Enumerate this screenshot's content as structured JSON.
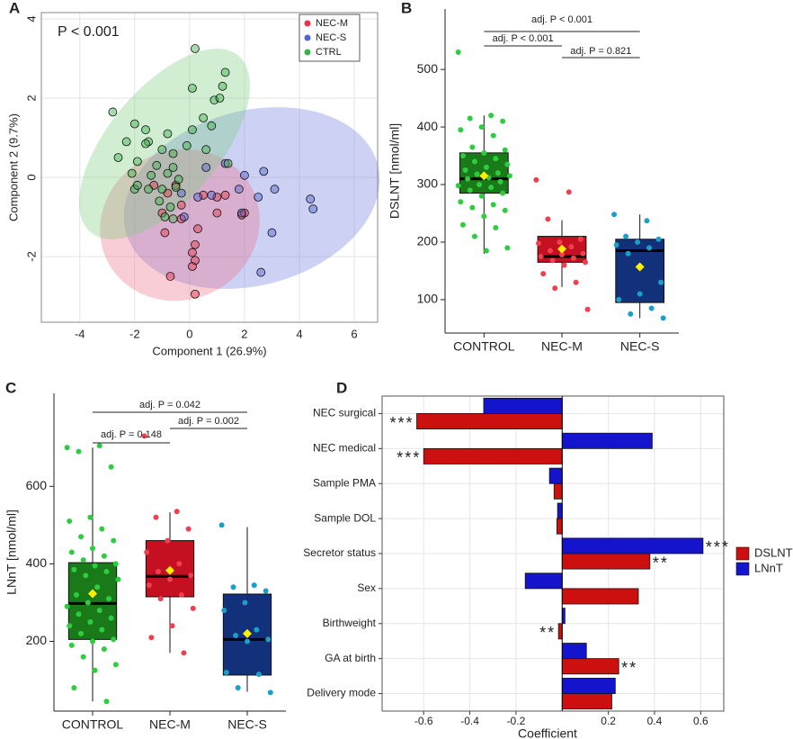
{
  "chart_data": [
    {
      "type": "scatter",
      "panel": "A",
      "annotation": "P < 0.001",
      "x_label": "Component 1 (26.9%)",
      "y_label": "Component 2 (9.7%)",
      "xlim": [
        -5.4,
        6.85
      ],
      "ylim": [
        -3.66,
        4.16
      ],
      "xticks": [
        -4,
        -2,
        0,
        2,
        4,
        6
      ],
      "yticks": [
        -2,
        0,
        2,
        4
      ],
      "grid": true,
      "legend": "top-right",
      "series": [
        {
          "name": "NEC-M",
          "color": "#e8334a",
          "x": [
            -0.5,
            -1.3,
            -0.8,
            -1.0,
            -0.3,
            -0.9,
            0.2,
            0.1,
            0.2,
            0.1,
            -0.7,
            0.2,
            0.5,
            1.0,
            1.3,
            1.0,
            1.9,
            2.0,
            0.3,
            -0.3
          ],
          "values": [
            -0.2,
            -0.2,
            -0.4,
            -0.9,
            -0.7,
            -1.4,
            -1.7,
            -1.9,
            -2.1,
            -2.25,
            -2.5,
            -2.95,
            -0.45,
            -0.5,
            -0.45,
            -0.9,
            -0.95,
            -0.9,
            -1.3,
            -1.05
          ]
        },
        {
          "name": "NEC-S",
          "color": "#5064d0",
          "x": [
            1.3,
            2.7,
            2.0,
            1.8,
            0.8,
            3.1,
            4.4,
            4.5,
            1.9,
            2.5,
            3.0,
            2.6,
            0.6,
            -0.3,
            0.3,
            -0.2
          ],
          "values": [
            0.35,
            0.15,
            0.05,
            -0.3,
            -0.45,
            -0.3,
            -0.55,
            -0.8,
            -0.9,
            -0.5,
            -1.4,
            -2.4,
            0.25,
            -0.4,
            -0.5,
            -1.0
          ]
        },
        {
          "name": "CTRL",
          "color": "#3cb04a",
          "x": [
            0.2,
            1.3,
            1.2,
            0.1,
            0.9,
            1.1,
            -2.8,
            -2.0,
            -1.6,
            0.5,
            0.1,
            -0.8,
            -1.5,
            -2.3,
            -1.6,
            -1.0,
            -0.6,
            -0.1,
            -2.6,
            -1.9,
            -1.2,
            -0.6,
            -2.1,
            -1.4,
            -0.8,
            -0.4,
            -2.0,
            -1.5,
            -1.0,
            -0.5,
            -0.7,
            -0.9,
            -0.6,
            1.4,
            0.8,
            0.6,
            -1.9,
            -1.1
          ],
          "values": [
            3.25,
            2.65,
            2.3,
            2.25,
            1.95,
            2.0,
            1.65,
            1.35,
            1.2,
            1.5,
            1.2,
            1.1,
            0.9,
            0.9,
            0.85,
            0.7,
            0.6,
            0.8,
            0.5,
            0.4,
            0.3,
            0.25,
            0.1,
            0.05,
            0.1,
            -0.05,
            -0.3,
            -0.3,
            -0.3,
            -0.25,
            -0.75,
            -1.0,
            -1.05,
            0.35,
            1.3,
            0.7,
            -0.2,
            -0.6
          ]
        }
      ]
    },
    {
      "type": "box",
      "panel": "B",
      "y_label": "DSLNT [nmol/ml]",
      "categories": [
        "CONTROL",
        "NEC-M",
        "NEC-S"
      ],
      "ylim": [
        42,
        605
      ],
      "yticks": [
        100,
        200,
        300,
        400,
        500
      ],
      "box_colors": [
        "#1a7a1a",
        "#c41020",
        "#13307a"
      ],
      "point_colors": [
        "#2ecc40",
        "#f04050",
        "#1a9fc8"
      ],
      "mean_color": "#ffee00",
      "boxes": [
        {
          "min": 180,
          "q1": 285,
          "median": 310,
          "q3": 355,
          "max": 420,
          "mean": 315
        },
        {
          "min": 122,
          "q1": 165,
          "median": 175,
          "q3": 210,
          "max": 238,
          "mean": 188
        },
        {
          "min": 68,
          "q1": 95,
          "median": 185,
          "q3": 205,
          "max": 248,
          "mean": 157
        }
      ],
      "points": [
        [
          530,
          420,
          415,
          410,
          400,
          395,
          385,
          365,
          360,
          355,
          350,
          345,
          340,
          335,
          330,
          325,
          320,
          318,
          315,
          312,
          310,
          305,
          300,
          298,
          295,
          290,
          285,
          280,
          270,
          265,
          260,
          255,
          245,
          230,
          225,
          210,
          190,
          185
        ],
        [
          308,
          287,
          240,
          205,
          200,
          198,
          192,
          185,
          180,
          178,
          175,
          172,
          168,
          165,
          160,
          145,
          130,
          120,
          83
        ],
        [
          248,
          237,
          210,
          205,
          200,
          195,
          190,
          180,
          130,
          110,
          100,
          85,
          75,
          68
        ]
      ],
      "annotations": [
        "adj. P < 0.001",
        "adj. P < 0.001",
        "adj. P = 0.821"
      ]
    },
    {
      "type": "box",
      "panel": "C",
      "y_label": "LNnT [nmol/ml]",
      "categories": [
        "CONTROL",
        "NEC-M",
        "NEC-S"
      ],
      "ylim": [
        20,
        840
      ],
      "yticks": [
        200,
        400,
        600
      ],
      "box_colors": [
        "#1a7a1a",
        "#c41020",
        "#13307a"
      ],
      "point_colors": [
        "#2ecc40",
        "#f04050",
        "#1a9fc8"
      ],
      "mean_color": "#ffee00",
      "boxes": [
        {
          "min": 45,
          "q1": 205,
          "median": 298,
          "q3": 403,
          "max": 700,
          "mean": 323
        },
        {
          "min": 170,
          "q1": 315,
          "median": 368,
          "q3": 460,
          "max": 533,
          "mean": 383
        },
        {
          "min": 70,
          "q1": 113,
          "median": 205,
          "q3": 322,
          "max": 495,
          "mean": 220
        }
      ],
      "points": [
        [
          700,
          705,
          690,
          650,
          520,
          510,
          490,
          470,
          460,
          440,
          430,
          420,
          410,
          400,
          395,
          385,
          380,
          370,
          360,
          340,
          320,
          310,
          300,
          290,
          280,
          270,
          260,
          250,
          240,
          230,
          220,
          205,
          200,
          190,
          180,
          160,
          140,
          125,
          80,
          45
        ],
        [
          730,
          535,
          520,
          490,
          460,
          430,
          400,
          380,
          370,
          360,
          345,
          320,
          310,
          285,
          240,
          210,
          170
        ],
        [
          500,
          345,
          340,
          330,
          300,
          280,
          230,
          215,
          205,
          200,
          120,
          115,
          80,
          68
        ]
      ],
      "annotations": [
        "adj. P = 0.042",
        "adj. P = 0.002",
        "adj. P = 0.148"
      ]
    },
    {
      "type": "hbar",
      "panel": "D",
      "x_label": "Coefficient",
      "categories": [
        "NEC surgical",
        "NEC medical",
        "Sample PMA",
        "Sample DOL",
        "Secretor status",
        "Sex",
        "Birthweight",
        "GA at birth",
        "Delivery mode"
      ],
      "xlim": [
        -0.78,
        0.7
      ],
      "xticks": [
        -0.6,
        -0.4,
        -0.2,
        0.2,
        0.4,
        0.6
      ],
      "grid": true,
      "legend": "right",
      "series": [
        {
          "name": "DSLNT",
          "color": "#cc1010",
          "values": [
            -0.63,
            -0.6,
            -0.035,
            -0.023,
            0.38,
            0.33,
            -0.016,
            0.245,
            0.215
          ],
          "significance": [
            "***",
            "***",
            null,
            null,
            "**",
            null,
            "**",
            "**",
            null
          ]
        },
        {
          "name": "LNnT",
          "color": "#1414cc",
          "values": [
            -0.34,
            0.39,
            -0.055,
            -0.02,
            0.61,
            -0.16,
            0.012,
            0.105,
            0.23
          ],
          "significance": [
            null,
            null,
            null,
            null,
            "***",
            null,
            null,
            null,
            null
          ]
        }
      ]
    }
  ]
}
